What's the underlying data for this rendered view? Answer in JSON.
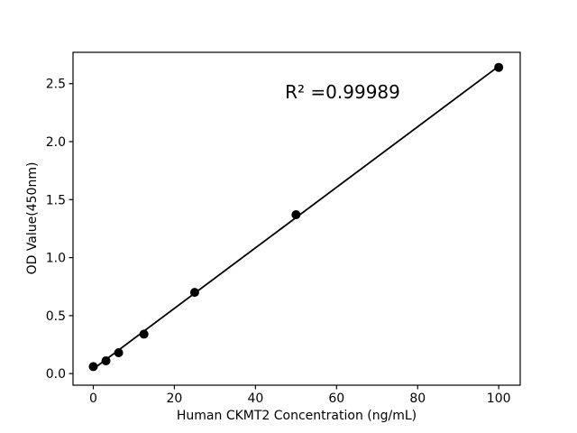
{
  "chart_data": {
    "type": "scatter",
    "title": "",
    "xlabel": "Human CKMT2 Concentration (ng/mL)",
    "ylabel": "OD Value(450nm)",
    "annotation": "R² =0.99989",
    "x": [
      0,
      3.125,
      6.25,
      12.5,
      25,
      50,
      100
    ],
    "y": [
      0.06,
      0.11,
      0.18,
      0.34,
      0.7,
      1.37,
      2.64
    ],
    "trendline": {
      "x": [
        0,
        100
      ],
      "y": [
        0.04,
        2.65
      ]
    },
    "xticks": [
      "0",
      "20",
      "40",
      "60",
      "80",
      "100"
    ],
    "yticks": [
      "0.0",
      "0.5",
      "1.0",
      "1.5",
      "2.0",
      "2.5"
    ],
    "xlim": [
      -5,
      105.3
    ],
    "ylim": [
      -0.1,
      2.77
    ],
    "grid": false,
    "legend": null,
    "marker_color": "#000000",
    "line_color": "#000000",
    "axis_color": "#000000",
    "background_color": "#ffffff",
    "marker_radius_px": 5
  }
}
